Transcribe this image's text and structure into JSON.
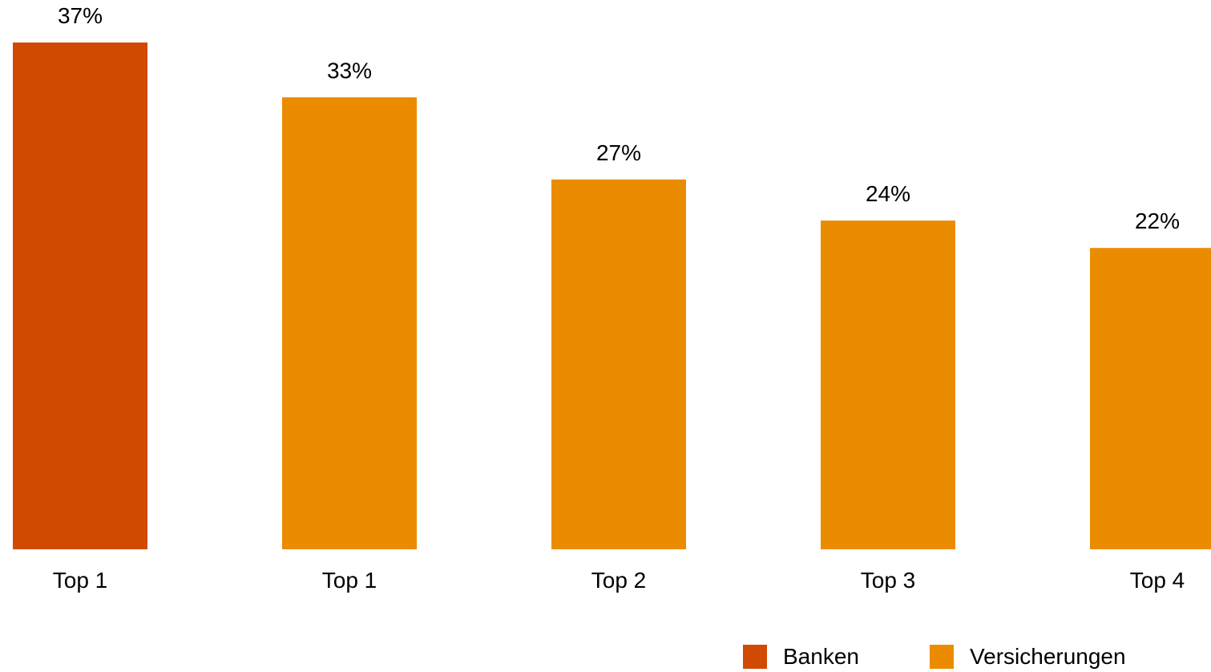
{
  "chart_data": {
    "type": "bar",
    "categories": [
      "Top 1",
      "Top 1",
      "Top 2",
      "Top 3",
      "Top 4"
    ],
    "values": [
      37,
      33,
      27,
      24,
      22
    ],
    "value_labels": [
      "37%",
      "33%",
      "27%",
      "24%",
      "22%"
    ],
    "bar_series": [
      "Banken",
      "Versicherungen",
      "Versicherungen",
      "Versicherungen",
      "Versicherungen"
    ],
    "series": [
      {
        "name": "Banken",
        "color": "#D04A02"
      },
      {
        "name": "Versicherungen",
        "color": "#EB8C00"
      }
    ],
    "legend_position": "bottom-right",
    "ylim": [
      0,
      37
    ],
    "grid": false,
    "title": "",
    "xlabel": "",
    "ylabel": ""
  }
}
